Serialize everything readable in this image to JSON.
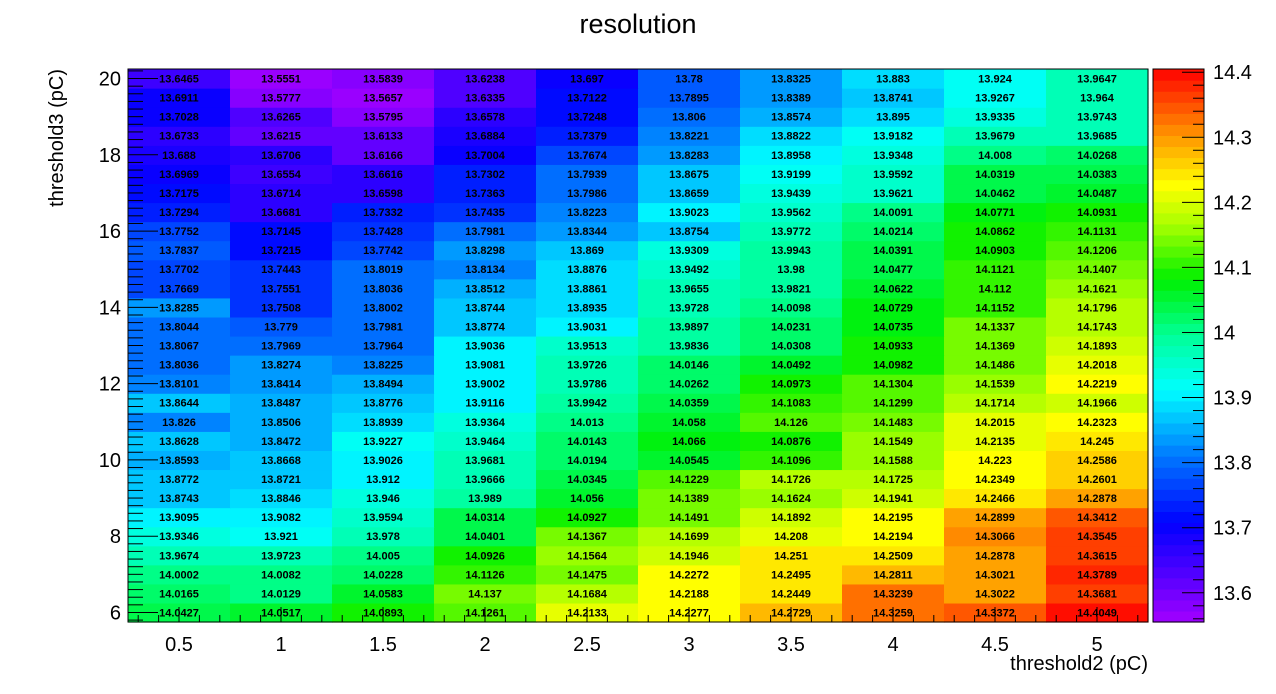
{
  "chart_data": {
    "type": "heatmap",
    "title": "resolution",
    "xlabel": "threshold2 (pC)",
    "ylabel": "threshold3 (pC)",
    "x": [
      0.5,
      1,
      1.5,
      2,
      2.5,
      3,
      3.5,
      4,
      4.5,
      5
    ],
    "y": [
      6,
      6.5,
      7,
      7.5,
      8,
      8.5,
      9,
      9.5,
      10,
      10.5,
      11,
      11.5,
      12,
      12.5,
      13,
      13.5,
      14,
      14.5,
      15,
      15.5,
      16,
      16.5,
      17,
      17.5,
      18,
      18.5,
      19,
      19.5,
      20
    ],
    "xlim": [
      0.25,
      5.25
    ],
    "ylim": [
      5.75,
      20.25
    ],
    "xticks": [
      "0.5",
      "1",
      "1.5",
      "2",
      "2.5",
      "3",
      "3.5",
      "4",
      "4.5",
      "5"
    ],
    "yticks": [
      "6",
      "8",
      "10",
      "12",
      "14",
      "16",
      "18",
      "20"
    ],
    "zlim": [
      13.5551,
      14.4049
    ],
    "colorbar_ticks": [
      "13.6",
      "13.7",
      "13.8",
      "13.9",
      "14",
      "14.1",
      "14.2",
      "14.3",
      "14.4"
    ],
    "rows": [
      [
        "14.0427",
        "14.0517",
        "14.0893",
        "14.1261",
        "14.2133",
        "14.2277",
        "14.2729",
        "14.3259",
        "14.3372",
        "14.4049"
      ],
      [
        "14.0165",
        "14.0129",
        "14.0583",
        "14.137",
        "14.1684",
        "14.2188",
        "14.2449",
        "14.3239",
        "14.3022",
        "14.3681"
      ],
      [
        "14.0002",
        "14.0082",
        "14.0228",
        "14.1126",
        "14.1475",
        "14.2272",
        "14.2495",
        "14.2811",
        "14.3021",
        "14.3789"
      ],
      [
        "13.9674",
        "13.9723",
        "14.005",
        "14.0926",
        "14.1564",
        "14.1946",
        "14.251",
        "14.2509",
        "14.2878",
        "14.3615"
      ],
      [
        "13.9346",
        "13.921",
        "13.978",
        "14.0401",
        "14.1367",
        "14.1699",
        "14.208",
        "14.2194",
        "14.3066",
        "14.3545"
      ],
      [
        "13.9095",
        "13.9082",
        "13.9594",
        "14.0314",
        "14.0927",
        "14.1491",
        "14.1892",
        "14.2195",
        "14.2899",
        "14.3412"
      ],
      [
        "13.8743",
        "13.8846",
        "13.946",
        "13.989",
        "14.056",
        "14.1389",
        "14.1624",
        "14.1941",
        "14.2466",
        "14.2878"
      ],
      [
        "13.8772",
        "13.8721",
        "13.912",
        "13.9666",
        "14.0345",
        "14.1229",
        "14.1726",
        "14.1725",
        "14.2349",
        "14.2601"
      ],
      [
        "13.8593",
        "13.8668",
        "13.9026",
        "13.9681",
        "14.0194",
        "14.0545",
        "14.1096",
        "14.1588",
        "14.223",
        "14.2586"
      ],
      [
        "13.8628",
        "13.8472",
        "13.9227",
        "13.9464",
        "14.0143",
        "14.066",
        "14.0876",
        "14.1549",
        "14.2135",
        "14.245"
      ],
      [
        "13.826",
        "13.8506",
        "13.8939",
        "13.9364",
        "14.013",
        "14.058",
        "14.126",
        "14.1483",
        "14.2015",
        "14.2323"
      ],
      [
        "13.8644",
        "13.8487",
        "13.8776",
        "13.9116",
        "13.9942",
        "14.0359",
        "14.1083",
        "14.1299",
        "14.1714",
        "14.1966"
      ],
      [
        "13.8101",
        "13.8414",
        "13.8494",
        "13.9002",
        "13.9786",
        "14.0262",
        "14.0973",
        "14.1304",
        "14.1539",
        "14.2219"
      ],
      [
        "13.8036",
        "13.8274",
        "13.8225",
        "13.9081",
        "13.9726",
        "14.0146",
        "14.0492",
        "14.0982",
        "14.1486",
        "14.2018"
      ],
      [
        "13.8067",
        "13.7969",
        "13.7964",
        "13.9036",
        "13.9513",
        "13.9836",
        "14.0308",
        "14.0933",
        "14.1369",
        "14.1893"
      ],
      [
        "13.8044",
        "13.779",
        "13.7981",
        "13.8774",
        "13.9031",
        "13.9897",
        "14.0231",
        "14.0735",
        "14.1337",
        "14.1743"
      ],
      [
        "13.8285",
        "13.7508",
        "13.8002",
        "13.8744",
        "13.8935",
        "13.9728",
        "14.0098",
        "14.0729",
        "14.1152",
        "14.1796"
      ],
      [
        "13.7669",
        "13.7551",
        "13.8036",
        "13.8512",
        "13.8861",
        "13.9655",
        "13.9821",
        "14.0622",
        "14.112",
        "14.1621"
      ],
      [
        "13.7702",
        "13.7443",
        "13.8019",
        "13.8134",
        "13.8876",
        "13.9492",
        "13.98",
        "14.0477",
        "14.1121",
        "14.1407"
      ],
      [
        "13.7837",
        "13.7215",
        "13.7742",
        "13.8298",
        "13.869",
        "13.9309",
        "13.9943",
        "14.0391",
        "14.0903",
        "14.1206"
      ],
      [
        "13.7752",
        "13.7145",
        "13.7428",
        "13.7981",
        "13.8344",
        "13.8754",
        "13.9772",
        "14.0214",
        "14.0862",
        "14.1131"
      ],
      [
        "13.7294",
        "13.6681",
        "13.7332",
        "13.7435",
        "13.8223",
        "13.9023",
        "13.9562",
        "14.0091",
        "14.0771",
        "14.0931"
      ],
      [
        "13.7175",
        "13.6714",
        "13.6598",
        "13.7363",
        "13.7986",
        "13.8659",
        "13.9439",
        "13.9621",
        "14.0462",
        "14.0487"
      ],
      [
        "13.6969",
        "13.6554",
        "13.6616",
        "13.7302",
        "13.7939",
        "13.8675",
        "13.9199",
        "13.9592",
        "14.0319",
        "14.0383"
      ],
      [
        "13.688",
        "13.6706",
        "13.6166",
        "13.7004",
        "13.7674",
        "13.8283",
        "13.8958",
        "13.9348",
        "14.008",
        "14.0268"
      ],
      [
        "13.6733",
        "13.6215",
        "13.6133",
        "13.6884",
        "13.7379",
        "13.8221",
        "13.8822",
        "13.9182",
        "13.9679",
        "13.9685"
      ],
      [
        "13.7028",
        "13.6265",
        "13.5795",
        "13.6578",
        "13.7248",
        "13.806",
        "13.8574",
        "13.895",
        "13.9335",
        "13.9743"
      ],
      [
        "13.6911",
        "13.5777",
        "13.5657",
        "13.6335",
        "13.7122",
        "13.7895",
        "13.8389",
        "13.8741",
        "13.9267",
        "13.964"
      ],
      [
        "13.6465",
        "13.5551",
        "13.5839",
        "13.6238",
        "13.697",
        "13.78",
        "13.8325",
        "13.883",
        "13.924",
        "13.9647"
      ]
    ]
  }
}
